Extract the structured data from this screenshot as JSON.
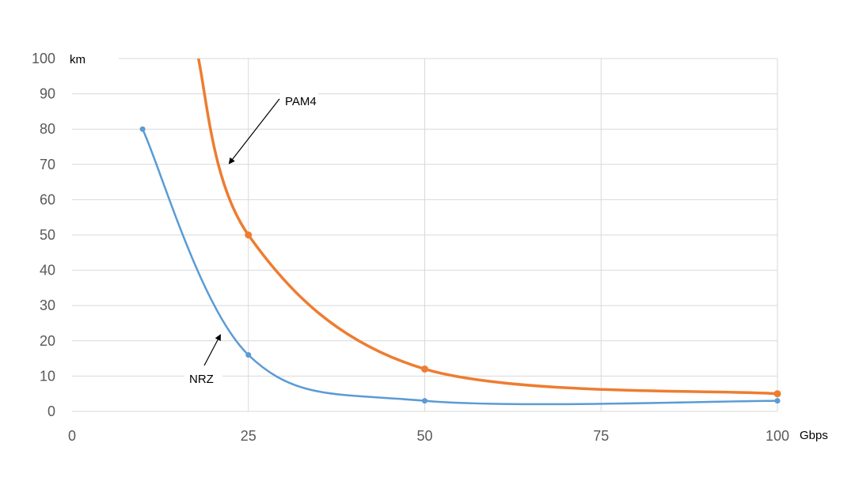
{
  "chart_data": {
    "type": "line",
    "title": "",
    "xlabel": "Gbps",
    "ylabel": "km",
    "xlim": [
      0,
      100
    ],
    "ylim": [
      0,
      100
    ],
    "x_ticks": [
      "0",
      "25",
      "50",
      "75",
      "100"
    ],
    "y_ticks": [
      "0",
      "10",
      "20",
      "30",
      "40",
      "50",
      "60",
      "70",
      "80",
      "90",
      "100"
    ],
    "grid": true,
    "series": [
      {
        "name": "PAM4",
        "color": "#ed7d31",
        "x": [
          25,
          50,
          100
        ],
        "y": [
          50,
          12,
          5
        ],
        "extends_above_axis": true
      },
      {
        "name": "NRZ",
        "color": "#5b9bd5",
        "x": [
          10,
          25,
          50,
          100
        ],
        "y": [
          80,
          16,
          3,
          3
        ]
      }
    ],
    "annotations": [
      {
        "text": "PAM4",
        "arrow_to_series": "PAM4"
      },
      {
        "text": "NRZ",
        "arrow_to_series": "NRZ"
      }
    ]
  }
}
